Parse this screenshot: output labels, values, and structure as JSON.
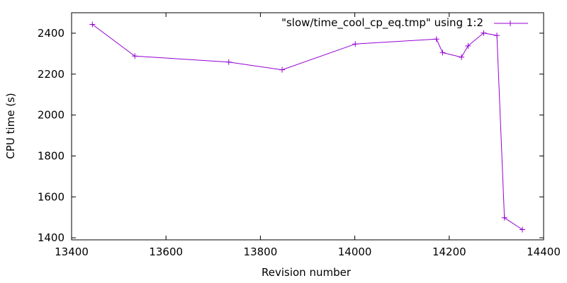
{
  "chart_data": {
    "type": "line",
    "xlabel": "Revision number",
    "ylabel": "CPU time (s)",
    "xlim": [
      13400,
      14400
    ],
    "ylim": [
      1390,
      2500
    ],
    "xticks": [
      13400,
      13600,
      13800,
      14000,
      14200,
      14400
    ],
    "yticks": [
      1400,
      1600,
      1800,
      2000,
      2200,
      2400
    ],
    "grid": false,
    "legend_position": "top-right",
    "color": "#9400d3",
    "series": [
      {
        "name": "\"slow/time_cool_cp_eq.tmp\" using 1:2",
        "x": [
          13444,
          13534,
          13733,
          13846,
          14001,
          14173,
          14186,
          14226,
          14240,
          14273,
          14301,
          14317,
          14355
        ],
        "y": [
          2443,
          2288,
          2259,
          2221,
          2347,
          2371,
          2305,
          2283,
          2338,
          2401,
          2389,
          1498,
          1440
        ]
      }
    ]
  }
}
